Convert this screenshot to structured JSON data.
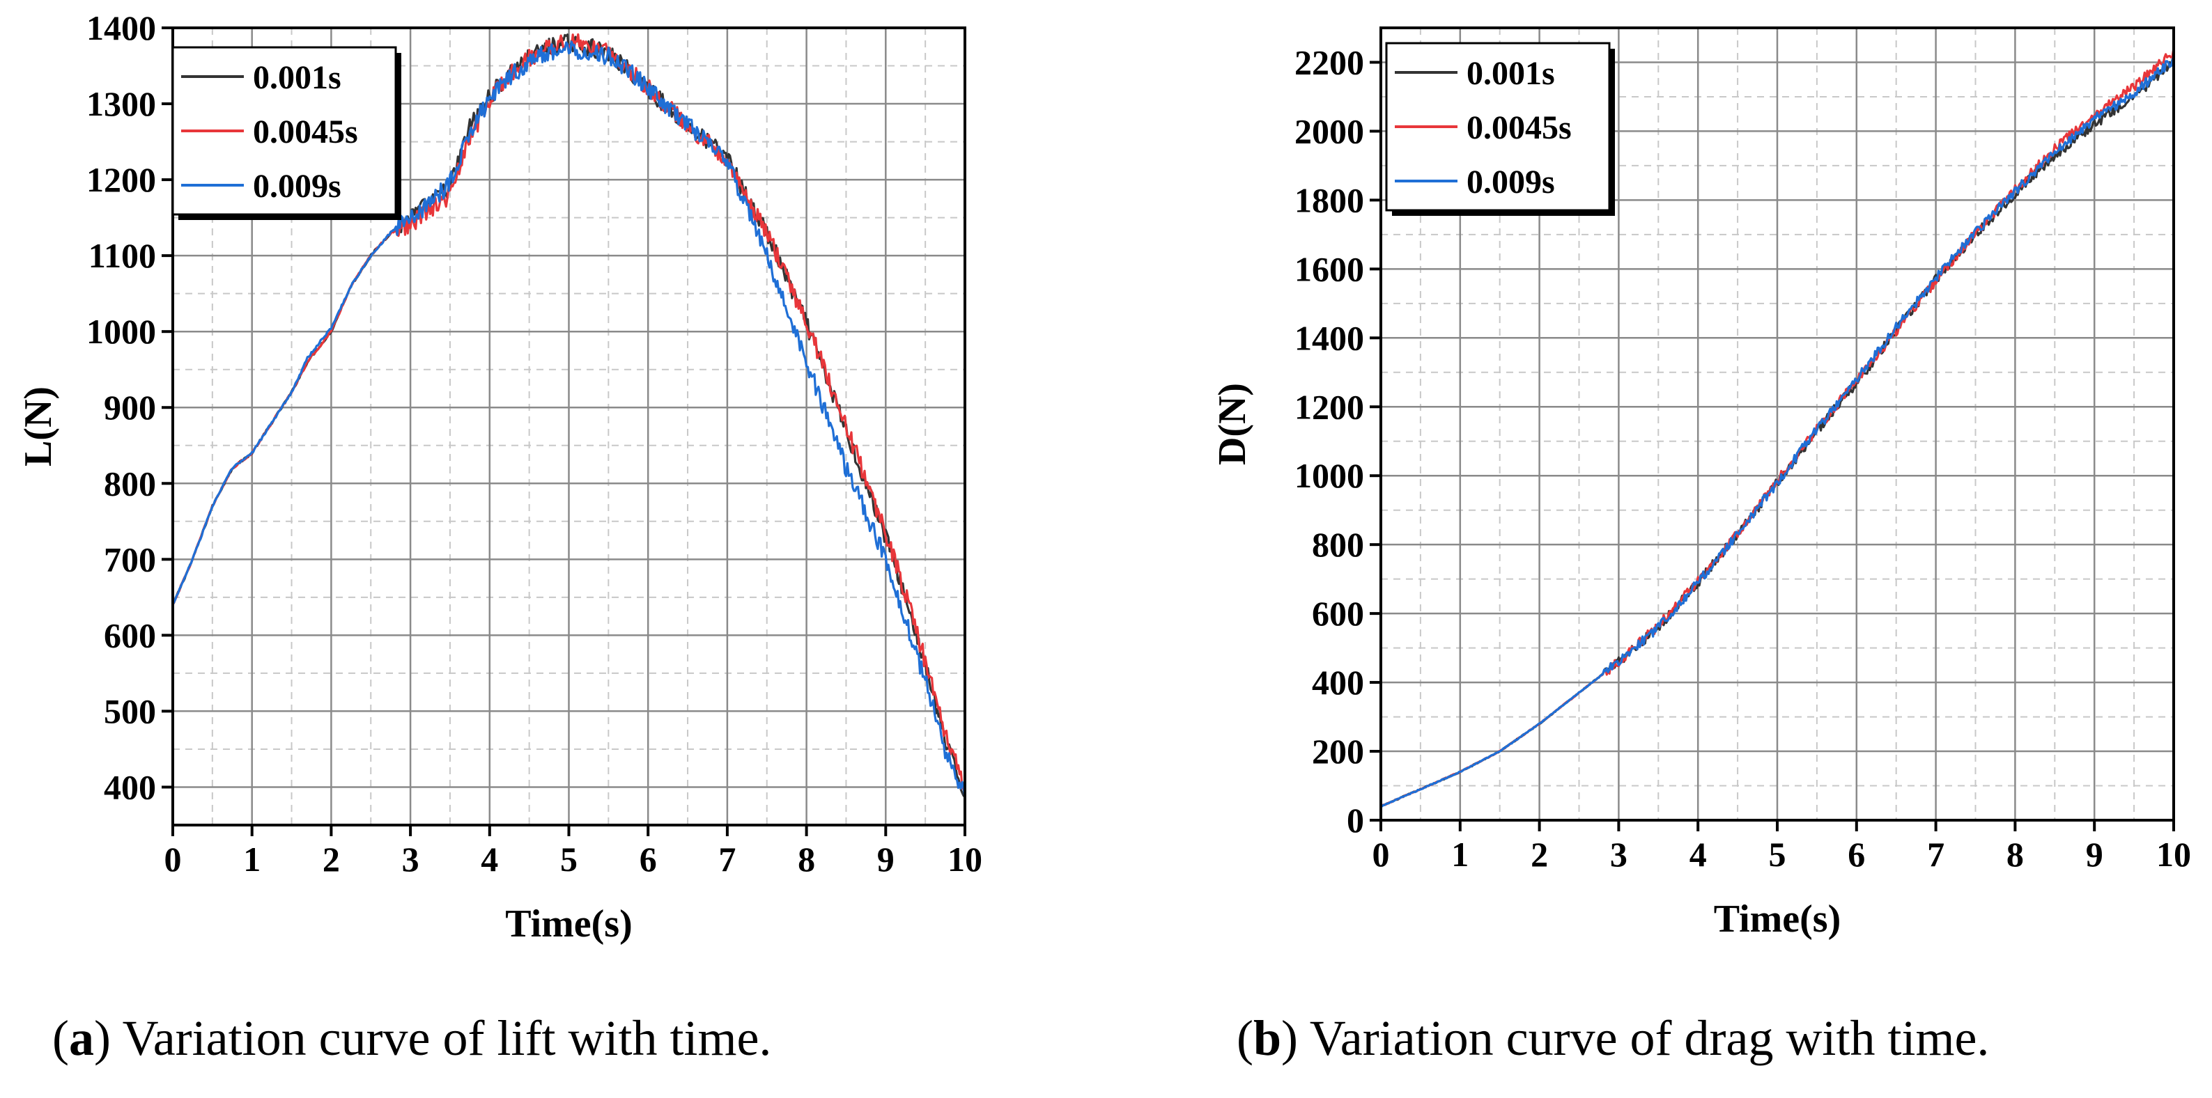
{
  "chart_data": [
    {
      "type": "line",
      "id": "lift",
      "title": "",
      "xlabel": "Time(s)",
      "ylabel": "L(N)",
      "xlim": [
        0,
        10
      ],
      "ylim": [
        350,
        1400
      ],
      "xticks": [
        "0",
        "1",
        "2",
        "3",
        "4",
        "5",
        "6",
        "7",
        "8",
        "9",
        "10"
      ],
      "yticks": [
        "400",
        "500",
        "600",
        "700",
        "800",
        "900",
        "1000",
        "1100",
        "1200",
        "1300",
        "1400"
      ],
      "grid": true,
      "legend_position": "top-left",
      "caption_label": "a",
      "caption_text": "Variation curve of lift with time.",
      "x": [
        0,
        0.25,
        0.5,
        0.75,
        1,
        1.25,
        1.5,
        1.7,
        2,
        2.25,
        2.5,
        2.75,
        3,
        3.25,
        3.5,
        3.75,
        4,
        4.25,
        4.5,
        4.75,
        5,
        5.25,
        5.5,
        5.75,
        6,
        6.25,
        6.5,
        6.75,
        7,
        7.25,
        7.5,
        7.75,
        8,
        8.25,
        8.5,
        8.75,
        9,
        9.25,
        9.5,
        9.75,
        10
      ],
      "series": [
        {
          "name": "0.001s",
          "color": "#333333",
          "values": [
            640,
            700,
            770,
            820,
            840,
            880,
            920,
            960,
            1000,
            1060,
            1100,
            1130,
            1150,
            1170,
            1190,
            1270,
            1310,
            1340,
            1360,
            1375,
            1380,
            1375,
            1365,
            1345,
            1320,
            1295,
            1270,
            1250,
            1230,
            1175,
            1130,
            1070,
            1010,
            940,
            870,
            800,
            730,
            650,
            560,
            460,
            390
          ]
        },
        {
          "name": "0.0045s",
          "color": "#e8363a",
          "values": [
            640,
            700,
            770,
            820,
            840,
            880,
            920,
            960,
            1000,
            1060,
            1100,
            1130,
            1140,
            1160,
            1180,
            1255,
            1305,
            1340,
            1360,
            1375,
            1382,
            1378,
            1366,
            1346,
            1322,
            1296,
            1270,
            1250,
            1228,
            1172,
            1130,
            1072,
            1012,
            945,
            875,
            805,
            735,
            655,
            565,
            470,
            400
          ]
        },
        {
          "name": "0.009s",
          "color": "#1f6fd6",
          "values": [
            640,
            700,
            770,
            820,
            840,
            880,
            920,
            965,
            1005,
            1060,
            1100,
            1130,
            1150,
            1170,
            1195,
            1265,
            1305,
            1335,
            1355,
            1368,
            1372,
            1370,
            1362,
            1345,
            1320,
            1296,
            1272,
            1250,
            1225,
            1160,
            1100,
            1030,
            960,
            890,
            820,
            760,
            700,
            620,
            540,
            450,
            390
          ]
        }
      ]
    },
    {
      "type": "line",
      "id": "drag",
      "title": "",
      "xlabel": "Time(s)",
      "ylabel": "D(N)",
      "xlim": [
        0,
        10
      ],
      "ylim": [
        0,
        2300
      ],
      "xticks": [
        "0",
        "1",
        "2",
        "3",
        "4",
        "5",
        "6",
        "7",
        "8",
        "9",
        "10"
      ],
      "yticks": [
        "0",
        "200",
        "400",
        "600",
        "800",
        "1000",
        "1200",
        "1400",
        "1600",
        "1800",
        "2000",
        "2200"
      ],
      "grid": true,
      "legend_position": "top-left",
      "caption_label": "b",
      "caption_text": "Variation curve of drag with time.",
      "x": [
        0,
        0.5,
        1,
        1.5,
        2,
        2.5,
        3,
        3.5,
        4,
        4.5,
        5,
        5.5,
        6,
        6.5,
        7,
        7.5,
        8,
        8.5,
        9,
        9.5,
        10
      ],
      "series": [
        {
          "name": "0.001s",
          "color": "#333333",
          "values": [
            40,
            90,
            140,
            200,
            280,
            370,
            460,
            560,
            690,
            830,
            980,
            1130,
            1270,
            1420,
            1570,
            1700,
            1820,
            1930,
            2020,
            2100,
            2200
          ]
        },
        {
          "name": "0.0045s",
          "color": "#e8363a",
          "values": [
            40,
            90,
            140,
            200,
            280,
            370,
            460,
            565,
            695,
            835,
            985,
            1135,
            1275,
            1420,
            1565,
            1705,
            1830,
            1950,
            2050,
            2130,
            2230
          ]
        },
        {
          "name": "0.009s",
          "color": "#1f6fd6",
          "values": [
            40,
            90,
            140,
            200,
            280,
            370,
            460,
            560,
            690,
            830,
            980,
            1135,
            1280,
            1430,
            1575,
            1705,
            1825,
            1940,
            2035,
            2110,
            2210
          ]
        }
      ]
    }
  ]
}
